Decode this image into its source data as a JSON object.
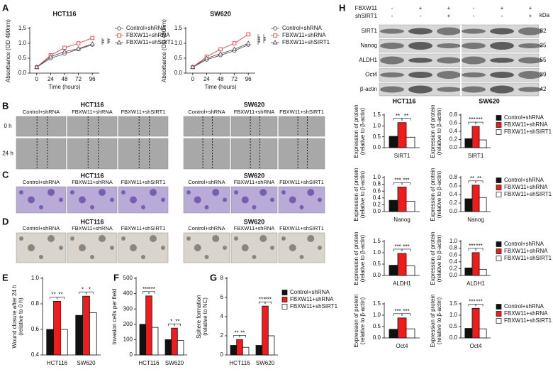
{
  "panel_labels": [
    "A",
    "B",
    "C",
    "D",
    "E",
    "F",
    "G",
    "H"
  ],
  "images": {
    "cell_lines": [
      "HCT116",
      "SW620"
    ],
    "columns": [
      "Control+shRNA",
      "FBXW11+shRNA",
      "FBXW11+shSIRT1"
    ],
    "rows": [
      "0 h",
      "24 h"
    ]
  },
  "blot": {
    "conditions": [
      {
        "name": "FBXW11",
        "marks": [
          "-",
          "+",
          "+"
        ]
      },
      {
        "name": "shSIRT1",
        "marks": [
          "-",
          "-",
          "+"
        ]
      }
    ],
    "unit": "kDa",
    "proteins": [
      {
        "name": "SIRT1",
        "kda": 82
      },
      {
        "name": "Nanog",
        "kda": 35
      },
      {
        "name": "ALDH1",
        "kda": 55
      },
      {
        "name": "Oct4",
        "kda": 39
      },
      {
        "name": "β-actin",
        "kda": 42
      }
    ],
    "cell_lines": [
      "HCT116",
      "SW620"
    ]
  },
  "chart_data": [
    {
      "type": "line",
      "title": "HCT116",
      "x_label": "Time (hours)",
      "y_label": [
        "Absorbance (OD 490nm)"
      ],
      "x": [
        0,
        24,
        48,
        72,
        96
      ],
      "xlim": [
        -12,
        108
      ],
      "xticks": [
        0,
        24,
        48,
        72,
        96
      ],
      "ylim": [
        0,
        1.5
      ],
      "yticks": [
        {
          "value": 0,
          "label": "0.0"
        },
        0.5,
        {
          "value": 1,
          "label": "1.0"
        },
        1.5
      ],
      "series": [
        {
          "name": "Control+shRNA",
          "color": "#555555",
          "marker": "circle",
          "values": [
            0.2,
            0.5,
            0.65,
            0.8,
            0.95
          ]
        },
        {
          "name": "FBXW11+shRNA",
          "color": "#e8434a",
          "marker": "square",
          "values": [
            0.2,
            0.6,
            0.85,
            1.0,
            1.18
          ]
        },
        {
          "name": "FBXW11+shSIRT1",
          "color": "#555555",
          "marker": "triangle",
          "values": [
            0.2,
            0.55,
            0.72,
            0.82,
            0.98
          ]
        }
      ],
      "annotations": [
        "**",
        "**"
      ],
      "legend": true
    },
    {
      "type": "line",
      "title": "SW620",
      "x_label": "Time (hours)",
      "y_label": [
        "Absorbance (OD 490nm)"
      ],
      "x": [
        0,
        24,
        48,
        72,
        96
      ],
      "xlim": [
        -12,
        108
      ],
      "xticks": [
        0,
        24,
        48,
        72,
        96
      ],
      "ylim": [
        0,
        1.5
      ],
      "yticks": [
        {
          "value": 0,
          "label": "0.0"
        },
        0.5,
        {
          "value": 1,
          "label": "1.0"
        },
        1.5
      ],
      "series": [
        {
          "name": "Control+shRNA",
          "color": "#555555",
          "marker": "circle",
          "values": [
            0.2,
            0.45,
            0.6,
            0.75,
            0.95
          ]
        },
        {
          "name": "FBXW11+shRNA",
          "color": "#e8434a",
          "marker": "square",
          "values": [
            0.2,
            0.55,
            0.8,
            1.0,
            1.3
          ]
        },
        {
          "name": "FBXW11+shSIRT1",
          "color": "#555555",
          "marker": "triangle",
          "values": [
            0.2,
            0.5,
            0.65,
            0.8,
            1.0
          ]
        }
      ],
      "annotations": [
        "***",
        "**"
      ],
      "legend": true
    },
    {
      "type": "bar",
      "y_label": [
        "Wound closure after 24 h",
        "(relative to 0 h)"
      ],
      "categories": [
        "HCT116",
        "SW620"
      ],
      "ylim": [
        0.4,
        1
      ],
      "yticks": [
        0.4,
        0.6,
        0.8,
        {
          "value": 1,
          "label": "1.0"
        }
      ],
      "series": [
        {
          "name": "Control+shRNA",
          "color": "#111111",
          "values": [
            0.6,
            0.71
          ]
        },
        {
          "name": "FBXW11+shRNA",
          "color": "#ee1c1c",
          "values": [
            0.82,
            0.86
          ]
        },
        {
          "name": "FBXW11+shSIRT1",
          "color": "#ffffff",
          "values": [
            0.6,
            0.73
          ]
        }
      ],
      "annotations": [
        "**",
        "**",
        "*",
        "*"
      ],
      "legend": false
    },
    {
      "type": "bar",
      "y_label": [
        "Invasion cells per field"
      ],
      "categories": [
        "HCT116",
        "SW620"
      ],
      "ylim": [
        0,
        500
      ],
      "yticks": [
        0,
        100,
        200,
        300,
        400,
        500
      ],
      "series": [
        {
          "name": "Control+shRNA",
          "color": "#111111",
          "values": [
            200,
            100
          ]
        },
        {
          "name": "FBXW11+shRNA",
          "color": "#ee1c1c",
          "values": [
            385,
            175
          ]
        },
        {
          "name": "FBXW11+shSIRT1",
          "color": "#ffffff",
          "values": [
            180,
            95
          ]
        }
      ],
      "annotations": [
        "***",
        "***",
        "*",
        "**"
      ],
      "legend": false
    },
    {
      "type": "bar",
      "y_label": [
        "Sphere formation",
        "(relative to NC)"
      ],
      "categories": [
        "HCT116",
        "SW620"
      ],
      "ylim": [
        0,
        8
      ],
      "yticks": [
        0,
        2,
        4,
        6,
        8
      ],
      "series": [
        {
          "name": "Control+shRNA",
          "color": "#111111",
          "values": [
            1,
            1
          ]
        },
        {
          "name": "FBXW11+shRNA",
          "color": "#ee1c1c",
          "values": [
            1.6,
            5.1
          ]
        },
        {
          "name": "FBXW11+shSIRT1",
          "color": "#ffffff",
          "values": [
            0.8,
            2
          ]
        }
      ],
      "annotations": [
        "**",
        "**",
        "***",
        "***"
      ],
      "legend": true
    },
    {
      "type": "bar",
      "y_label": [
        "Expression of protein",
        "(relative to β-actin)"
      ],
      "categories": [
        "SIRT1"
      ],
      "ylim": [
        0,
        1.5
      ],
      "yticks": [
        {
          "value": 0,
          "label": "0.0"
        },
        0.5,
        {
          "value": 1,
          "label": "1.0"
        },
        1.5
      ],
      "series": [
        {
          "name": "Control+shRNA",
          "color": "#111111",
          "values": [
            0.52
          ]
        },
        {
          "name": "FBXW11+shRNA",
          "color": "#ee1c1c",
          "values": [
            1.15
          ]
        },
        {
          "name": "FBXW11+shSIRT1",
          "color": "#ffffff",
          "values": [
            0.48
          ]
        }
      ],
      "annotations": [
        "**",
        "**"
      ],
      "legend": false
    },
    {
      "type": "bar",
      "y_label": [
        "Expression of protein",
        "(relative to β-actin)"
      ],
      "categories": [
        "SIRT1"
      ],
      "ylim": [
        0,
        0.8
      ],
      "yticks": [
        {
          "value": 0,
          "label": "0.0"
        },
        0.2,
        0.4,
        0.6,
        0.8
      ],
      "series": [
        {
          "name": "Control+shRNA",
          "color": "#111111",
          "values": [
            0.22
          ]
        },
        {
          "name": "FBXW11+shRNA",
          "color": "#ee1c1c",
          "values": [
            0.52
          ]
        },
        {
          "name": "FBXW11+shSIRT1",
          "color": "#ffffff",
          "values": [
            0.19
          ]
        }
      ],
      "annotations": [
        "***",
        "***"
      ],
      "legend": true
    },
    {
      "type": "bar",
      "y_label": [
        "Expression of protein",
        "(relative to β-actin)"
      ],
      "categories": [
        "Nanog"
      ],
      "ylim": [
        0,
        1
      ],
      "yticks": [
        {
          "value": 0,
          "label": "0.0"
        },
        0.2,
        0.4,
        0.6,
        0.8,
        {
          "value": 1,
          "label": "1.0"
        }
      ],
      "series": [
        {
          "name": "Control+shRNA",
          "color": "#111111",
          "values": [
            0.33
          ]
        },
        {
          "name": "FBXW11+shRNA",
          "color": "#ee1c1c",
          "values": [
            0.72
          ]
        },
        {
          "name": "FBXW11+shSIRT1",
          "color": "#ffffff",
          "values": [
            0.3
          ]
        }
      ],
      "annotations": [
        "***",
        "***"
      ],
      "legend": false
    },
    {
      "type": "bar",
      "y_label": [
        "Expression of protein",
        "(relative to β-actin)"
      ],
      "categories": [
        "Nanog"
      ],
      "ylim": [
        0,
        0.8
      ],
      "yticks": [
        {
          "value": 0,
          "label": "0.0"
        },
        0.2,
        0.4,
        0.6,
        0.8
      ],
      "series": [
        {
          "name": "Control+shRNA",
          "color": "#111111",
          "values": [
            0.3
          ]
        },
        {
          "name": "FBXW11+shRNA",
          "color": "#ee1c1c",
          "values": [
            0.62
          ]
        },
        {
          "name": "FBXW11+shSIRT1",
          "color": "#ffffff",
          "values": [
            0.33
          ]
        }
      ],
      "annotations": [
        "**",
        "**"
      ],
      "legend": true
    },
    {
      "type": "bar",
      "y_label": [
        "Expression of protein",
        "(relative to β-actin)"
      ],
      "categories": [
        "ALDH1"
      ],
      "ylim": [
        0,
        1.5
      ],
      "yticks": [
        {
          "value": 0,
          "label": "0.0"
        },
        0.5,
        {
          "value": 1,
          "label": "1.0"
        },
        1.5
      ],
      "series": [
        {
          "name": "Control+shRNA",
          "color": "#111111",
          "values": [
            0.45
          ]
        },
        {
          "name": "FBXW11+shRNA",
          "color": "#ee1c1c",
          "values": [
            0.97
          ]
        },
        {
          "name": "FBXW11+shSIRT1",
          "color": "#ffffff",
          "values": [
            0.42
          ]
        }
      ],
      "annotations": [
        "***",
        "***"
      ],
      "legend": false
    },
    {
      "type": "bar",
      "y_label": [
        "Expression of protein",
        "(relative to β-actin)"
      ],
      "categories": [
        "ALDH1"
      ],
      "ylim": [
        0,
        1
      ],
      "yticks": [
        {
          "value": 0,
          "label": "0.0"
        },
        0.2,
        0.4,
        0.6,
        0.8,
        {
          "value": 1,
          "label": "1.0"
        }
      ],
      "series": [
        {
          "name": "Control+shRNA",
          "color": "#111111",
          "values": [
            0.22
          ]
        },
        {
          "name": "FBXW11+shRNA",
          "color": "#ee1c1c",
          "values": [
            0.67
          ]
        },
        {
          "name": "FBXW11+shSIRT1",
          "color": "#ffffff",
          "values": [
            0.18
          ]
        }
      ],
      "annotations": [
        "***",
        "***"
      ],
      "legend": true
    },
    {
      "type": "bar",
      "y_label": [
        "Expression of protein",
        "(relative to β-actin)"
      ],
      "categories": [
        "Oct4"
      ],
      "ylim": [
        0,
        1.5
      ],
      "yticks": [
        {
          "value": 0,
          "label": "0.0"
        },
        0.5,
        {
          "value": 1,
          "label": "1.0"
        },
        1.5
      ],
      "series": [
        {
          "name": "Control+shRNA",
          "color": "#111111",
          "values": [
            0.38
          ]
        },
        {
          "name": "FBXW11+shRNA",
          "color": "#ee1c1c",
          "values": [
            0.88
          ]
        },
        {
          "name": "FBXW11+shSIRT1",
          "color": "#ffffff",
          "values": [
            0.4
          ]
        }
      ],
      "annotations": [
        "***",
        "***"
      ],
      "legend": false
    },
    {
      "type": "bar",
      "y_label": [
        "Expression of protein",
        "(relative to β-actin)"
      ],
      "categories": [
        "Oct4"
      ],
      "ylim": [
        0,
        1.5
      ],
      "yticks": [
        {
          "value": 0,
          "label": "0.0"
        },
        0.5,
        {
          "value": 1,
          "label": "1.0"
        },
        1.5
      ],
      "series": [
        {
          "name": "Control+shRNA",
          "color": "#111111",
          "values": [
            0.42
          ]
        },
        {
          "name": "FBXW11+shRNA",
          "color": "#ee1c1c",
          "values": [
            1.3
          ]
        },
        {
          "name": "FBXW11+shSIRT1",
          "color": "#ffffff",
          "values": [
            0.4
          ]
        }
      ],
      "annotations": [
        "***",
        "***"
      ],
      "legend": true
    }
  ]
}
